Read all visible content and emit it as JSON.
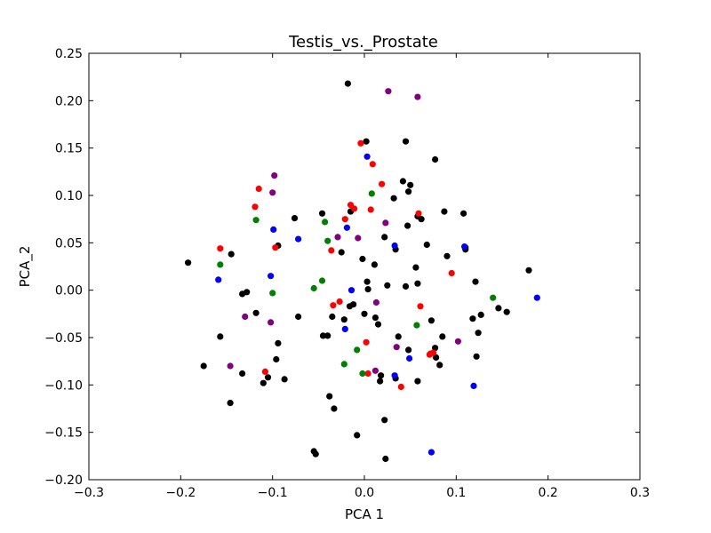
{
  "chart_data": {
    "type": "scatter",
    "title": "Testis_vs._Prostate",
    "xlabel": "PCA 1",
    "ylabel": "PCA_2",
    "xlim": [
      -0.3,
      0.3
    ],
    "ylim": [
      -0.2,
      0.25
    ],
    "grid": false,
    "x_ticks": [
      -0.3,
      -0.2,
      -0.1,
      0.0,
      0.1,
      0.2,
      0.3
    ],
    "y_ticks": [
      -0.2,
      -0.15,
      -0.1,
      -0.05,
      0.0,
      0.05,
      0.1,
      0.15,
      0.2,
      0.25
    ],
    "x_tick_labels": [
      "−0.3",
      "−0.2",
      "−0.1",
      "0.0",
      "0.1",
      "0.2",
      "0.3"
    ],
    "y_tick_labels": [
      "−0.20",
      "−0.15",
      "−0.10",
      "−0.05",
      "0.00",
      "0.05",
      "0.10",
      "0.15",
      "0.20",
      "0.25"
    ],
    "series": [
      {
        "color": "#000000",
        "points": [
          [
            -0.192,
            0.029
          ],
          [
            -0.175,
            -0.08
          ],
          [
            -0.157,
            -0.049
          ],
          [
            -0.145,
            0.038
          ],
          [
            -0.146,
            -0.119
          ],
          [
            -0.133,
            -0.004
          ],
          [
            -0.133,
            -0.088
          ],
          [
            -0.128,
            -0.002
          ],
          [
            -0.118,
            -0.024
          ],
          [
            -0.11,
            -0.098
          ],
          [
            -0.105,
            -0.092
          ],
          [
            -0.094,
            0.047
          ],
          [
            -0.094,
            -0.056
          ],
          [
            -0.096,
            -0.073
          ],
          [
            -0.087,
            -0.094
          ],
          [
            -0.076,
            0.076
          ],
          [
            -0.072,
            -0.028
          ],
          [
            -0.055,
            -0.17
          ],
          [
            -0.053,
            -0.173
          ],
          [
            -0.046,
            0.081
          ],
          [
            -0.045,
            -0.048
          ],
          [
            -0.04,
            -0.048
          ],
          [
            -0.038,
            -0.112
          ],
          [
            -0.035,
            -0.028
          ],
          [
            -0.033,
            -0.125
          ],
          [
            -0.025,
            0.04
          ],
          [
            -0.018,
            0.218
          ],
          [
            -0.022,
            -0.031
          ],
          [
            -0.016,
            -0.017
          ],
          [
            -0.015,
            0.083
          ],
          [
            -0.012,
            -0.015
          ],
          [
            -0.008,
            -0.153
          ],
          [
            -0.002,
            0.033
          ],
          [
            0.0,
            -0.025
          ],
          [
            0.002,
            0.157
          ],
          [
            0.003,
            0.009
          ],
          [
            0.004,
            0.001
          ],
          [
            0.011,
            0.027
          ],
          [
            0.012,
            -0.029
          ],
          [
            0.015,
            -0.036
          ],
          [
            0.017,
            -0.096
          ],
          [
            0.018,
            -0.09
          ],
          [
            0.022,
            0.056
          ],
          [
            0.022,
            -0.137
          ],
          [
            0.023,
            -0.178
          ],
          [
            0.025,
            0.005
          ],
          [
            0.032,
            0.097
          ],
          [
            0.034,
            0.043
          ],
          [
            0.037,
            -0.049
          ],
          [
            0.034,
            -0.093
          ],
          [
            0.042,
            0.115
          ],
          [
            0.045,
            0.157
          ],
          [
            0.045,
            0.004
          ],
          [
            0.047,
            0.068
          ],
          [
            0.048,
            0.104
          ],
          [
            0.048,
            -0.063
          ],
          [
            0.05,
            0.111
          ],
          [
            0.056,
            0.024
          ],
          [
            0.058,
            0.078
          ],
          [
            0.058,
            0.007
          ],
          [
            0.058,
            -0.096
          ],
          [
            0.062,
            0.075
          ],
          [
            0.068,
            0.048
          ],
          [
            0.073,
            -0.032
          ],
          [
            0.077,
            0.138
          ],
          [
            0.077,
            -0.061
          ],
          [
            0.078,
            -0.071
          ],
          [
            0.082,
            -0.079
          ],
          [
            0.085,
            -0.049
          ],
          [
            0.087,
            0.083
          ],
          [
            0.09,
            0.036
          ],
          [
            0.108,
            0.081
          ],
          [
            0.11,
            0.045
          ],
          [
            0.11,
            0.043
          ],
          [
            0.118,
            -0.03
          ],
          [
            0.121,
            0.009
          ],
          [
            0.122,
            -0.07
          ],
          [
            0.124,
            -0.045
          ],
          [
            0.127,
            -0.026
          ],
          [
            0.146,
            -0.019
          ],
          [
            0.155,
            -0.023
          ],
          [
            0.179,
            0.021
          ]
        ]
      },
      {
        "color": "#ff0000",
        "points": [
          [
            -0.157,
            0.044
          ],
          [
            -0.119,
            0.088
          ],
          [
            -0.115,
            0.107
          ],
          [
            -0.108,
            -0.086
          ],
          [
            -0.097,
            0.045
          ],
          [
            -0.036,
            0.042
          ],
          [
            -0.034,
            -0.016
          ],
          [
            -0.027,
            -0.012
          ],
          [
            -0.021,
            0.075
          ],
          [
            -0.015,
            0.09
          ],
          [
            -0.011,
            0.086
          ],
          [
            -0.004,
            0.155
          ],
          [
            0.002,
            -0.055
          ],
          [
            0.004,
            -0.088
          ],
          [
            0.007,
            0.085
          ],
          [
            0.009,
            0.133
          ],
          [
            0.019,
            0.112
          ],
          [
            0.04,
            -0.102
          ],
          [
            0.059,
            0.081
          ],
          [
            0.061,
            -0.017
          ],
          [
            0.071,
            -0.068
          ],
          [
            0.072,
            -0.067
          ],
          [
            0.075,
            -0.066
          ],
          [
            0.095,
            0.018
          ]
        ]
      },
      {
        "color": "#0000ff",
        "points": [
          [
            -0.159,
            0.011
          ],
          [
            -0.102,
            0.015
          ],
          [
            -0.099,
            0.064
          ],
          [
            -0.072,
            0.054
          ],
          [
            -0.021,
            -0.041
          ],
          [
            -0.019,
            0.066
          ],
          [
            -0.014,
            0.0
          ],
          [
            0.003,
            0.141
          ],
          [
            0.033,
            0.047
          ],
          [
            0.033,
            -0.09
          ],
          [
            0.049,
            -0.072
          ],
          [
            0.073,
            -0.171
          ],
          [
            0.109,
            0.046
          ],
          [
            0.119,
            -0.101
          ],
          [
            0.188,
            -0.008
          ]
        ]
      },
      {
        "color": "#008000",
        "points": [
          [
            -0.157,
            0.027
          ],
          [
            -0.118,
            0.074
          ],
          [
            -0.1,
            -0.003
          ],
          [
            -0.055,
            0.002
          ],
          [
            -0.046,
            0.01
          ],
          [
            -0.043,
            0.072
          ],
          [
            -0.04,
            0.052
          ],
          [
            -0.022,
            -0.078
          ],
          [
            -0.008,
            -0.063
          ],
          [
            -0.002,
            -0.088
          ],
          [
            0.008,
            0.102
          ],
          [
            0.057,
            -0.037
          ],
          [
            0.14,
            -0.008
          ]
        ]
      },
      {
        "color": "#800080",
        "points": [
          [
            -0.146,
            -0.08
          ],
          [
            -0.13,
            -0.028
          ],
          [
            -0.102,
            -0.034
          ],
          [
            -0.098,
            0.121
          ],
          [
            -0.1,
            0.103
          ],
          [
            -0.029,
            0.056
          ],
          [
            -0.007,
            0.055
          ],
          [
            0.012,
            -0.085
          ],
          [
            0.013,
            -0.013
          ],
          [
            0.023,
            0.071
          ],
          [
            0.026,
            0.21
          ],
          [
            0.035,
            -0.06
          ],
          [
            0.058,
            0.204
          ],
          [
            0.102,
            -0.054
          ]
        ]
      }
    ]
  }
}
